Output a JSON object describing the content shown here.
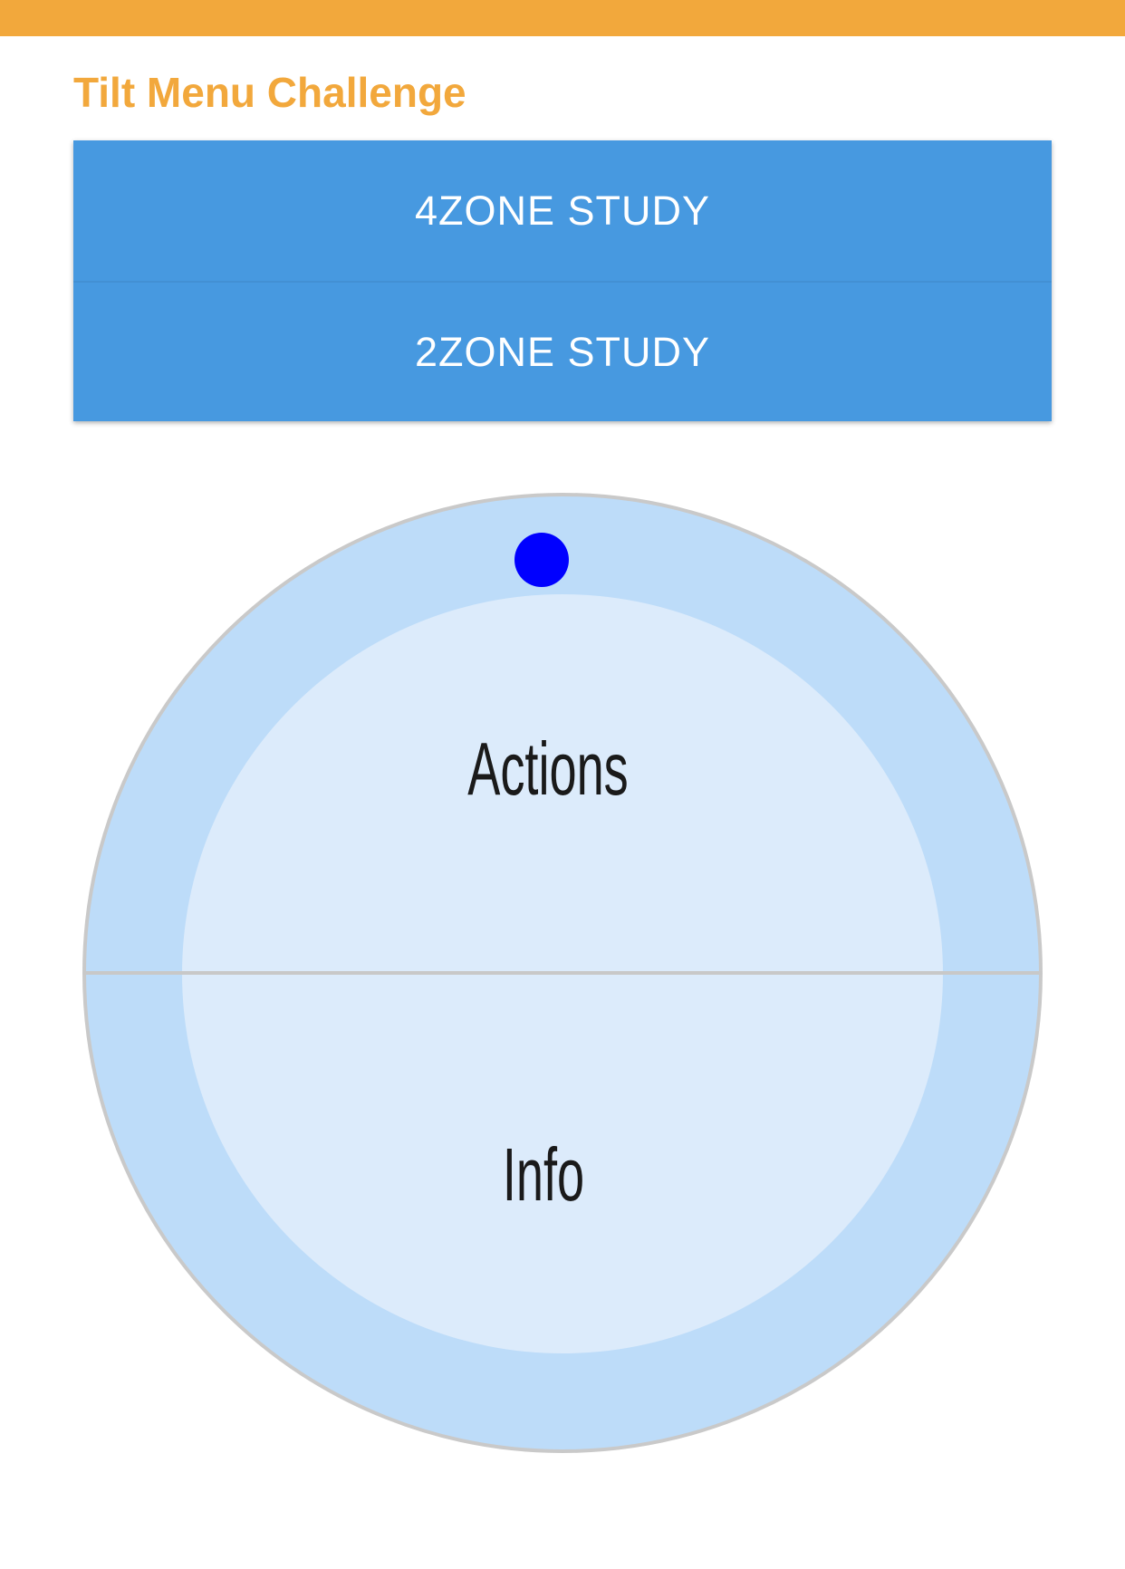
{
  "header": {
    "title": "Tilt Menu Challenge",
    "bar_color": "#f2a83c"
  },
  "studies": [
    {
      "label": "4ZONE STUDY"
    },
    {
      "label": "2ZONE STUDY"
    }
  ],
  "dial": {
    "zones": [
      {
        "label": "Actions"
      },
      {
        "label": "Info"
      }
    ],
    "colors": {
      "outer_ring": "#bddcf9",
      "inner_area": "#dcebfb",
      "divider": "#c8c8c8",
      "tilt_cursor": "#0000ff"
    }
  }
}
